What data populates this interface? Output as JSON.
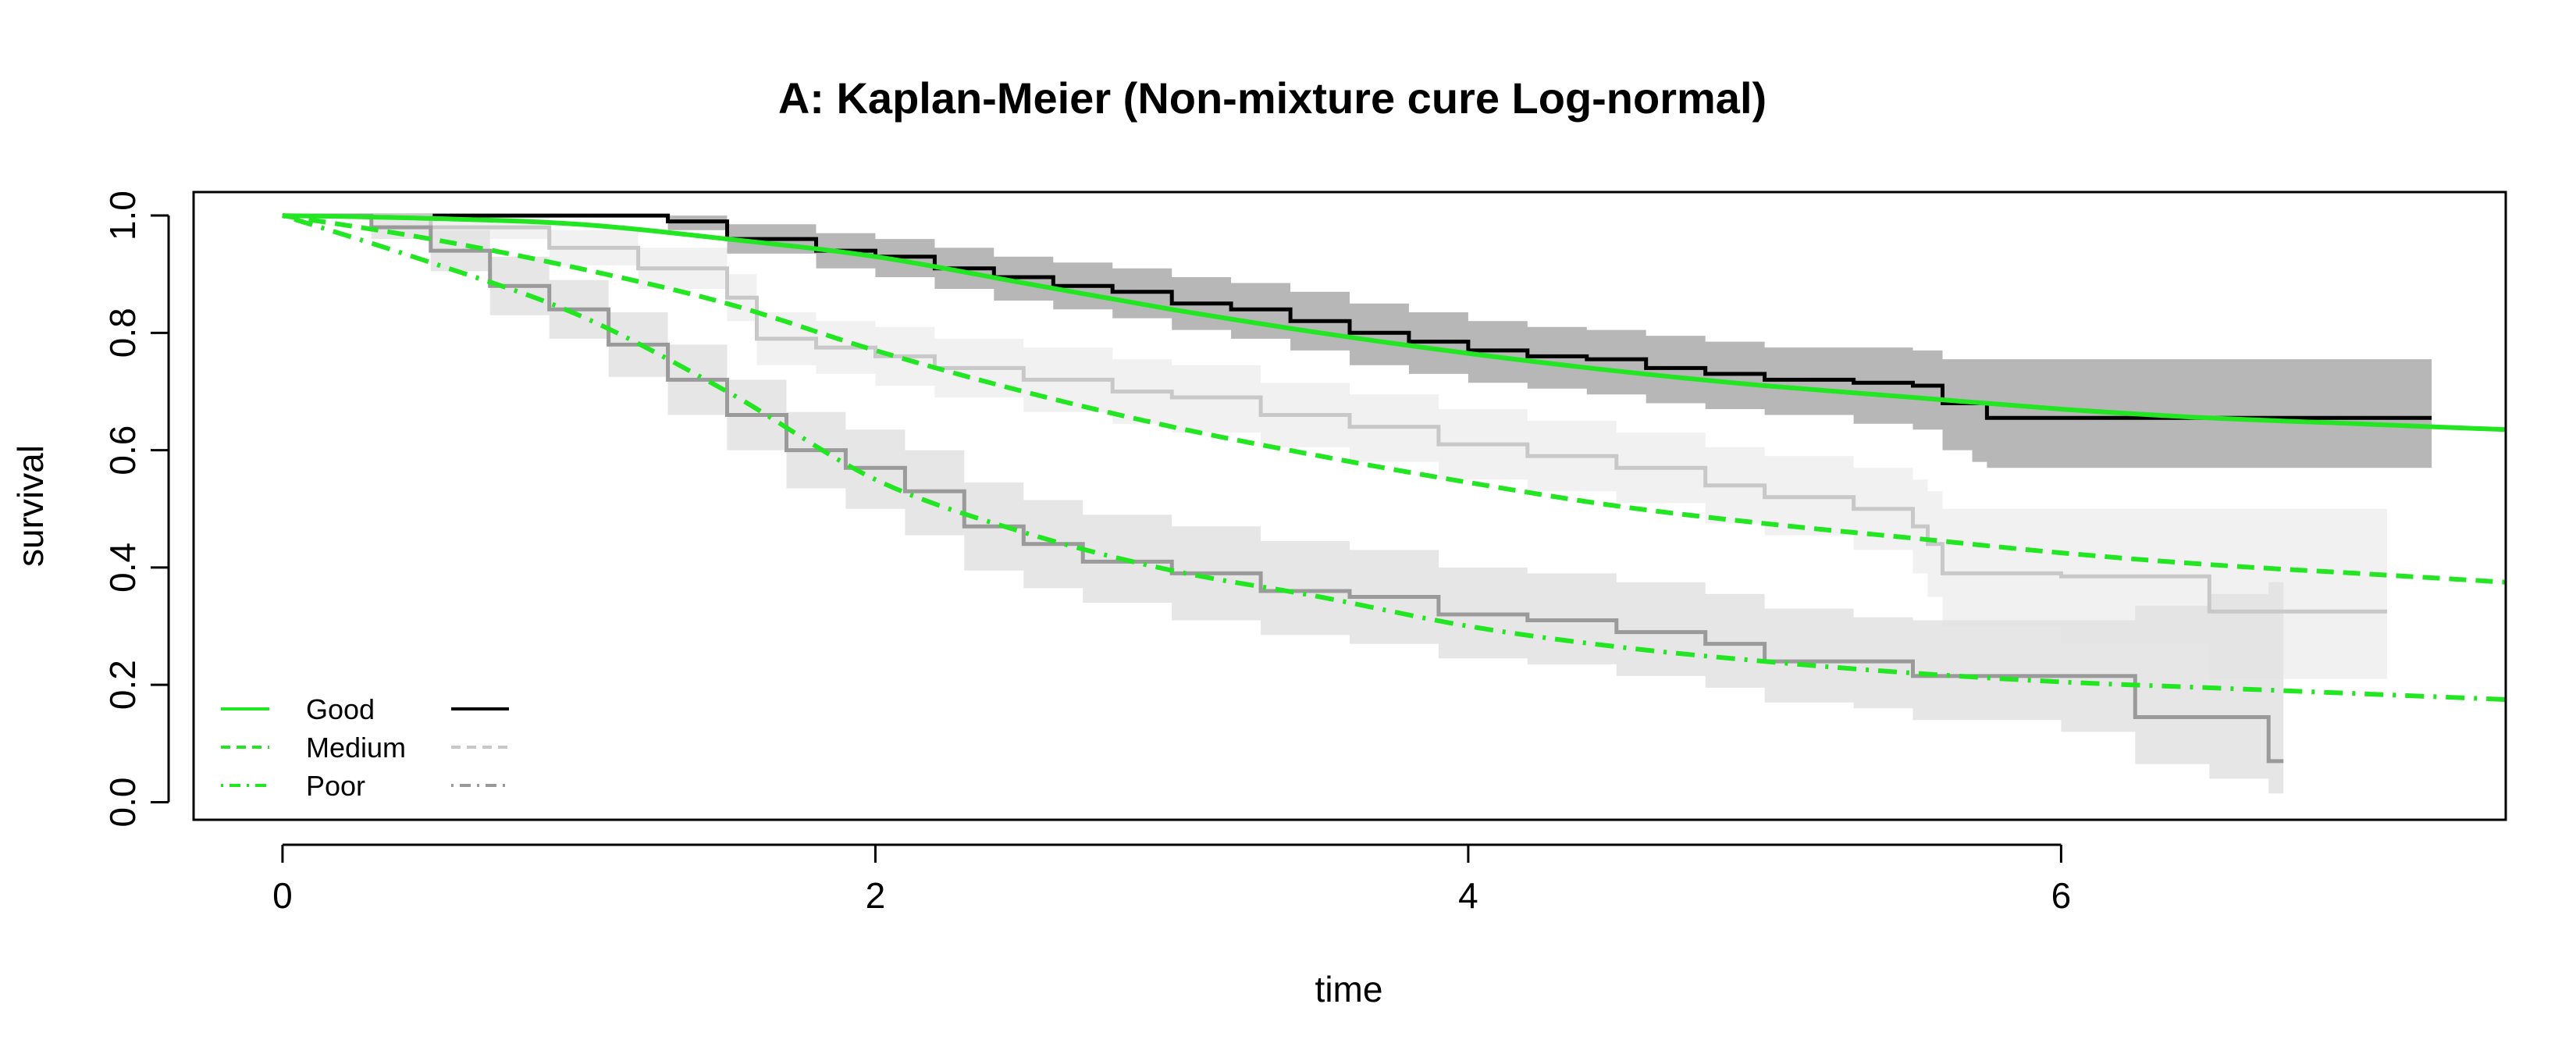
{
  "chart_data": {
    "type": "line",
    "title": "A: Kaplan-Meier (Non-mixture cure Log-normal)",
    "xlabel": "time",
    "ylabel": "survival",
    "xlim": [
      -0.3,
      7.5
    ],
    "ylim": [
      -0.03,
      1.04
    ],
    "xticks": [
      "0",
      "2",
      "4",
      "6"
    ],
    "yticks": [
      "0.0",
      "0.2",
      "0.4",
      "0.6",
      "0.8",
      "1.0"
    ],
    "grid": false,
    "legend": {
      "placement": "bottom-left",
      "entries": [
        "Good",
        "Medium",
        "Poor"
      ]
    },
    "colors": {
      "model": "#22e622",
      "km_good": "#000000",
      "km_medium": "#c8c8c8",
      "km_poor": "#9a9a9a",
      "ci_good": "#aaaaaa",
      "ci_medium": "#eeeeee",
      "ci_poor": "#e2e2e2"
    },
    "model_series": [
      {
        "name": "Good",
        "linestyle": "solid",
        "x": [
          0,
          0.5,
          1,
          1.5,
          2,
          2.5,
          3,
          3.5,
          4,
          4.5,
          5,
          5.5,
          6,
          6.5,
          7,
          7.5
        ],
        "y": [
          1.0,
          0.995,
          0.985,
          0.96,
          0.93,
          0.885,
          0.84,
          0.8,
          0.765,
          0.735,
          0.71,
          0.69,
          0.67,
          0.655,
          0.645,
          0.635
        ]
      },
      {
        "name": "Medium",
        "linestyle": "dashed",
        "x": [
          0,
          0.5,
          1,
          1.5,
          2,
          2.5,
          3,
          3.5,
          4,
          4.5,
          5,
          5.5,
          6,
          6.5,
          7,
          7.5
        ],
        "y": [
          1.0,
          0.96,
          0.91,
          0.85,
          0.77,
          0.7,
          0.64,
          0.59,
          0.545,
          0.505,
          0.475,
          0.45,
          0.425,
          0.405,
          0.39,
          0.375
        ]
      },
      {
        "name": "Poor",
        "linestyle": "dotdash",
        "x": [
          0,
          0.5,
          1,
          1.5,
          2,
          2.5,
          3,
          3.5,
          4,
          4.5,
          5,
          5.5,
          6,
          6.5,
          7,
          7.5
        ],
        "y": [
          1.0,
          0.92,
          0.83,
          0.7,
          0.55,
          0.46,
          0.395,
          0.35,
          0.3,
          0.265,
          0.24,
          0.22,
          0.205,
          0.195,
          0.185,
          0.175
        ]
      }
    ],
    "km_series": [
      {
        "group": "Good",
        "linestyle": "solid",
        "x": [
          0,
          0.5,
          1.0,
          1.3,
          1.5,
          1.8,
          2.0,
          2.2,
          2.4,
          2.6,
          2.8,
          3.0,
          3.2,
          3.4,
          3.6,
          3.8,
          4.0,
          4.2,
          4.4,
          4.6,
          4.8,
          5.0,
          5.3,
          5.5,
          5.6,
          5.7,
          5.75,
          6.0,
          6.5,
          7.0,
          7.25
        ],
        "y": [
          1.0,
          1.0,
          1.0,
          0.99,
          0.96,
          0.94,
          0.93,
          0.91,
          0.895,
          0.88,
          0.87,
          0.85,
          0.84,
          0.82,
          0.8,
          0.785,
          0.77,
          0.76,
          0.755,
          0.74,
          0.73,
          0.72,
          0.715,
          0.71,
          0.68,
          0.68,
          0.655,
          0.655,
          0.655,
          0.655,
          0.655
        ],
        "ci_upper": [
          1.0,
          1.0,
          1.0,
          1.0,
          0.985,
          0.97,
          0.96,
          0.945,
          0.93,
          0.92,
          0.91,
          0.895,
          0.885,
          0.87,
          0.85,
          0.835,
          0.82,
          0.81,
          0.805,
          0.795,
          0.785,
          0.775,
          0.775,
          0.77,
          0.755,
          0.755,
          0.755,
          0.755,
          0.755,
          0.755,
          0.755
        ],
        "ci_lower": [
          1.0,
          1.0,
          1.0,
          0.975,
          0.935,
          0.91,
          0.895,
          0.875,
          0.855,
          0.84,
          0.825,
          0.805,
          0.79,
          0.77,
          0.745,
          0.73,
          0.715,
          0.705,
          0.695,
          0.68,
          0.67,
          0.66,
          0.645,
          0.635,
          0.6,
          0.58,
          0.57,
          0.57,
          0.57,
          0.57,
          0.57
        ]
      },
      {
        "group": "Medium",
        "linestyle": "dashed",
        "x": [
          0,
          0.5,
          0.9,
          1.2,
          1.5,
          1.6,
          1.8,
          2.0,
          2.2,
          2.5,
          2.8,
          3.0,
          3.3,
          3.6,
          3.9,
          4.2,
          4.5,
          4.8,
          5.0,
          5.3,
          5.5,
          5.55,
          5.6,
          6.0,
          6.5,
          7.1
        ],
        "y": [
          1.0,
          0.98,
          0.945,
          0.91,
          0.86,
          0.79,
          0.775,
          0.76,
          0.74,
          0.72,
          0.7,
          0.69,
          0.66,
          0.64,
          0.61,
          0.59,
          0.57,
          0.54,
          0.52,
          0.5,
          0.47,
          0.44,
          0.39,
          0.385,
          0.325,
          0.325
        ],
        "ci_upper": [
          1.0,
          1.0,
          0.975,
          0.945,
          0.9,
          0.835,
          0.82,
          0.81,
          0.79,
          0.775,
          0.755,
          0.745,
          0.715,
          0.695,
          0.67,
          0.65,
          0.63,
          0.605,
          0.59,
          0.57,
          0.55,
          0.53,
          0.5,
          0.5,
          0.5,
          0.5
        ],
        "ci_lower": [
          1.0,
          0.96,
          0.915,
          0.875,
          0.82,
          0.745,
          0.73,
          0.71,
          0.69,
          0.665,
          0.645,
          0.63,
          0.605,
          0.58,
          0.55,
          0.53,
          0.51,
          0.475,
          0.455,
          0.43,
          0.39,
          0.35,
          0.3,
          0.27,
          0.21,
          0.21
        ]
      },
      {
        "group": "Poor",
        "linestyle": "dotdash",
        "x": [
          0,
          0.3,
          0.5,
          0.7,
          0.9,
          1.1,
          1.3,
          1.5,
          1.7,
          1.9,
          2.1,
          2.3,
          2.5,
          2.7,
          3.0,
          3.3,
          3.6,
          3.9,
          4.2,
          4.5,
          4.8,
          5.0,
          5.3,
          5.5,
          6.0,
          6.25,
          6.5,
          6.7,
          6.75
        ],
        "y": [
          1.0,
          0.98,
          0.94,
          0.88,
          0.84,
          0.78,
          0.72,
          0.66,
          0.6,
          0.57,
          0.53,
          0.47,
          0.44,
          0.41,
          0.39,
          0.36,
          0.35,
          0.32,
          0.31,
          0.29,
          0.27,
          0.24,
          0.24,
          0.215,
          0.215,
          0.145,
          0.145,
          0.07,
          0.07
        ],
        "ci_upper": [
          1.0,
          1.0,
          0.975,
          0.93,
          0.89,
          0.835,
          0.78,
          0.72,
          0.665,
          0.635,
          0.6,
          0.545,
          0.515,
          0.49,
          0.47,
          0.445,
          0.43,
          0.4,
          0.39,
          0.375,
          0.355,
          0.33,
          0.315,
          0.31,
          0.31,
          0.335,
          0.355,
          0.375,
          0.375
        ],
        "ci_lower": [
          1.0,
          0.96,
          0.905,
          0.83,
          0.79,
          0.725,
          0.66,
          0.6,
          0.535,
          0.5,
          0.455,
          0.395,
          0.365,
          0.34,
          0.31,
          0.285,
          0.27,
          0.245,
          0.235,
          0.215,
          0.195,
          0.17,
          0.16,
          0.14,
          0.12,
          0.065,
          0.04,
          0.015,
          0.015
        ]
      }
    ]
  }
}
